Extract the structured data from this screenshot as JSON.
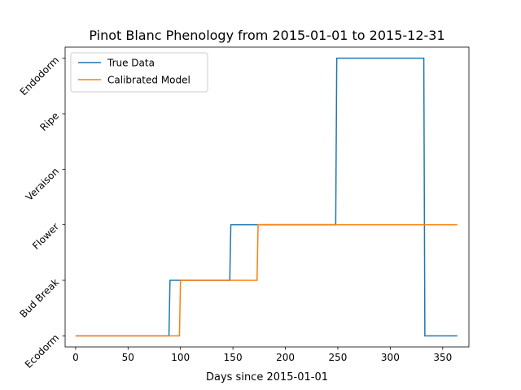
{
  "chart_data": {
    "type": "line",
    "title": "Pinot Blanc Phenology from 2015-01-01 to 2015-12-31",
    "xlabel": "Days since 2015-01-01",
    "ylabel": "",
    "xlim": [
      -10,
      375
    ],
    "ylim": [
      -0.2,
      5.2
    ],
    "x_ticks": [
      0,
      50,
      100,
      150,
      200,
      250,
      300,
      350
    ],
    "y_ticks": [
      0,
      1,
      2,
      3,
      4,
      5
    ],
    "y_tick_labels": [
      "Ecodorm",
      "Bud Break",
      "Flower",
      "Veraison",
      "Ripe",
      "Endodorm"
    ],
    "legend": {
      "position": "top-left"
    },
    "series": [
      {
        "name": "True Data",
        "color": "#1f77b4",
        "x": [
          0,
          89,
          90,
          147,
          148,
          248,
          249,
          332,
          333,
          364
        ],
        "y": [
          0,
          0,
          1,
          1,
          2,
          2,
          5,
          5,
          0,
          0
        ]
      },
      {
        "name": "Calibrated Model",
        "color": "#ff7f0e",
        "x": [
          0,
          99,
          100,
          173,
          174,
          364
        ],
        "y": [
          0,
          0,
          1,
          1,
          2,
          2
        ]
      }
    ]
  }
}
